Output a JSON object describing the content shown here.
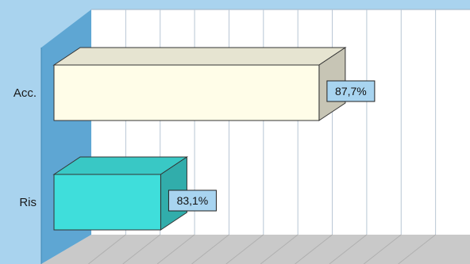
{
  "chart_data": {
    "type": "bar",
    "orientation": "horizontal",
    "style": "3d",
    "categories": [
      "Acc.",
      "Ris"
    ],
    "series": [
      {
        "values": [
          87.7,
          83.1
        ]
      }
    ],
    "data_labels": [
      "87,7%",
      "83,1%"
    ],
    "xlim": [
      80,
      91
    ],
    "grid": true,
    "legend": "none",
    "colors": {
      "background": "#a9d3ee",
      "wall_side": "#5ea6d3",
      "wall_back": "#ffffff",
      "floor": "#c9c9c9",
      "gridline": "#b8c6d4",
      "bar_acc": "#fffde8",
      "bar_ris": "#3fdedb",
      "label_box": "#a8d4f0"
    }
  }
}
